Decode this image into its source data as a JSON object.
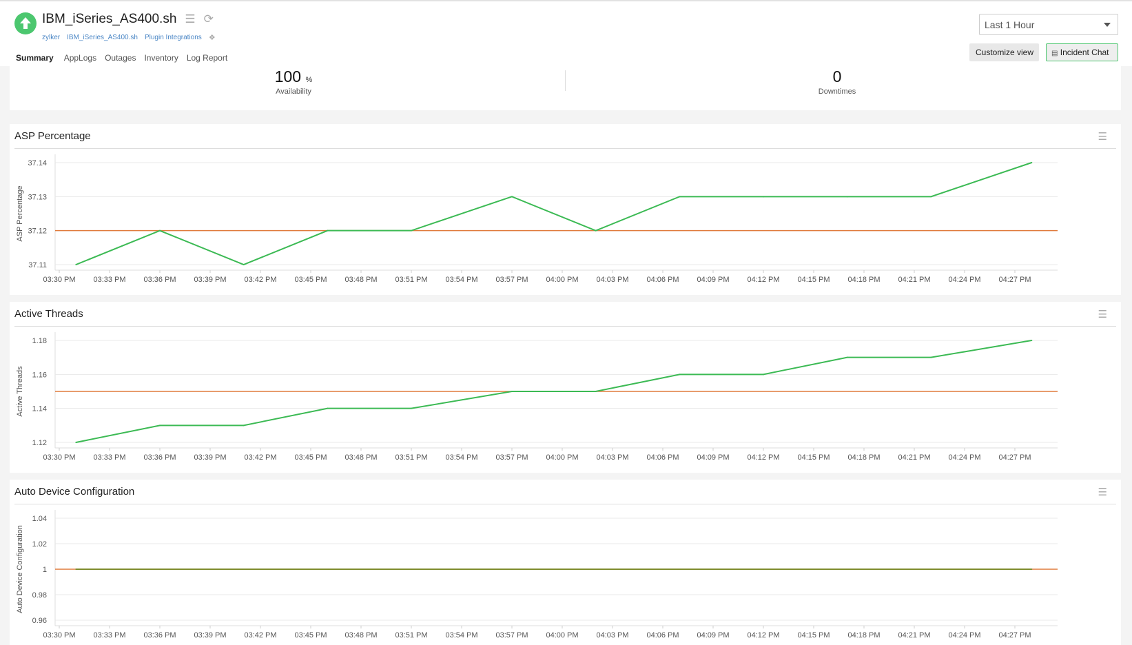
{
  "header": {
    "title": "IBM_iSeries_AS400.sh",
    "status": "up",
    "breadcrumbs": [
      "zylker",
      "IBM_iSeries_AS400.sh",
      "Plugin Integrations"
    ],
    "tabs": [
      "Summary",
      "AppLogs",
      "Outages",
      "Inventory",
      "Log Report"
    ],
    "active_tab": "Summary",
    "time_range": "Last 1 Hour",
    "customize_label": "Customize view",
    "incident_chat_label": "Incident Chat"
  },
  "summary": {
    "availability_value": "100",
    "availability_unit": "%",
    "availability_label": "Availability",
    "downtimes_value": "0",
    "downtimes_label": "Downtimes"
  },
  "colors": {
    "series": "#3cba54",
    "threshold": "#e07b3c",
    "flat_series": "#7f8c2d",
    "status": "#4cc76f"
  },
  "chart_data": [
    {
      "type": "line",
      "title": "ASP Percentage",
      "ylabel": "ASP Percentage",
      "yticks": [
        "37.11",
        "37.12",
        "37.13",
        "37.14"
      ],
      "xticks": [
        "03:30 PM",
        "03:33 PM",
        "03:36 PM",
        "03:39 PM",
        "03:42 PM",
        "03:45 PM",
        "03:48 PM",
        "03:51 PM",
        "03:54 PM",
        "03:57 PM",
        "04:00 PM",
        "04:03 PM",
        "04:06 PM",
        "04:09 PM",
        "04:12 PM",
        "04:15 PM",
        "04:18 PM",
        "04:21 PM",
        "04:24 PM",
        "04:27 PM"
      ],
      "x": [
        "03:31 PM",
        "03:36 PM",
        "03:41 PM",
        "03:46 PM",
        "03:51 PM",
        "03:57 PM",
        "04:02 PM",
        "04:07 PM",
        "04:12 PM",
        "04:17 PM",
        "04:22 PM",
        "04:28 PM"
      ],
      "values": [
        37.11,
        37.12,
        37.11,
        37.12,
        37.12,
        37.13,
        37.12,
        37.13,
        37.13,
        37.13,
        37.13,
        37.14
      ],
      "threshold": 37.12,
      "grid": true
    },
    {
      "type": "line",
      "title": "Active Threads",
      "ylabel": "Active Threads",
      "yticks": [
        "1.12",
        "1.14",
        "1.16",
        "1.18"
      ],
      "xticks": [
        "03:30 PM",
        "03:33 PM",
        "03:36 PM",
        "03:39 PM",
        "03:42 PM",
        "03:45 PM",
        "03:48 PM",
        "03:51 PM",
        "03:54 PM",
        "03:57 PM",
        "04:00 PM",
        "04:03 PM",
        "04:06 PM",
        "04:09 PM",
        "04:12 PM",
        "04:15 PM",
        "04:18 PM",
        "04:21 PM",
        "04:24 PM",
        "04:27 PM"
      ],
      "x": [
        "03:31 PM",
        "03:36 PM",
        "03:41 PM",
        "03:46 PM",
        "03:51 PM",
        "03:57 PM",
        "04:02 PM",
        "04:07 PM",
        "04:12 PM",
        "04:17 PM",
        "04:22 PM",
        "04:28 PM"
      ],
      "values": [
        1.12,
        1.13,
        1.13,
        1.14,
        1.14,
        1.15,
        1.15,
        1.16,
        1.16,
        1.17,
        1.17,
        1.18
      ],
      "threshold": 1.15,
      "grid": true
    },
    {
      "type": "line",
      "title": "Auto Device Configuration",
      "ylabel": "Auto Device Configuration",
      "yticks": [
        "0.96",
        "0.98",
        "1",
        "1.02",
        "1.04"
      ],
      "xticks": [
        "03:30 PM",
        "03:33 PM",
        "03:36 PM",
        "03:39 PM",
        "03:42 PM",
        "03:45 PM",
        "03:48 PM",
        "03:51 PM",
        "03:54 PM",
        "03:57 PM",
        "04:00 PM",
        "04:03 PM",
        "04:06 PM",
        "04:09 PM",
        "04:12 PM",
        "04:15 PM",
        "04:18 PM",
        "04:21 PM",
        "04:24 PM",
        "04:27 PM"
      ],
      "x": [
        "03:31 PM",
        "03:36 PM",
        "03:41 PM",
        "03:46 PM",
        "03:51 PM",
        "03:57 PM",
        "04:02 PM",
        "04:07 PM",
        "04:12 PM",
        "04:17 PM",
        "04:22 PM",
        "04:28 PM"
      ],
      "values": [
        1,
        1,
        1,
        1,
        1,
        1,
        1,
        1,
        1,
        1,
        1,
        1
      ],
      "threshold": 1,
      "grid": true
    }
  ]
}
